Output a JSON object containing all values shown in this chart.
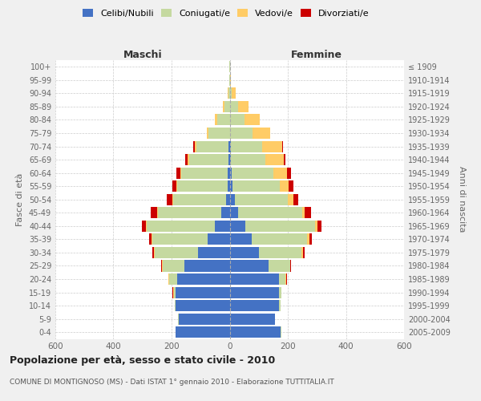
{
  "age_groups": [
    "0-4",
    "5-9",
    "10-14",
    "15-19",
    "20-24",
    "25-29",
    "30-34",
    "35-39",
    "40-44",
    "45-49",
    "50-54",
    "55-59",
    "60-64",
    "65-69",
    "70-74",
    "75-79",
    "80-84",
    "85-89",
    "90-94",
    "95-99",
    "100+"
  ],
  "birth_years": [
    "2005-2009",
    "2000-2004",
    "1995-1999",
    "1990-1994",
    "1985-1989",
    "1980-1984",
    "1975-1979",
    "1970-1974",
    "1965-1969",
    "1960-1964",
    "1955-1959",
    "1950-1954",
    "1945-1949",
    "1940-1944",
    "1935-1939",
    "1930-1934",
    "1925-1929",
    "1920-1924",
    "1915-1919",
    "1910-1914",
    "≤ 1909"
  ],
  "male": {
    "celibi": [
      185,
      175,
      185,
      185,
      180,
      155,
      110,
      75,
      50,
      28,
      12,
      8,
      8,
      5,
      5,
      0,
      0,
      0,
      0,
      0,
      0
    ],
    "coniugati": [
      2,
      2,
      4,
      8,
      28,
      75,
      148,
      190,
      235,
      220,
      183,
      172,
      158,
      135,
      110,
      72,
      42,
      18,
      5,
      2,
      1
    ],
    "vedovi": [
      0,
      0,
      0,
      2,
      2,
      2,
      2,
      3,
      3,
      3,
      3,
      3,
      5,
      5,
      5,
      8,
      10,
      5,
      2,
      0,
      0
    ],
    "divorziati": [
      0,
      0,
      0,
      2,
      2,
      3,
      5,
      8,
      14,
      22,
      18,
      14,
      12,
      8,
      5,
      0,
      0,
      0,
      0,
      0,
      0
    ]
  },
  "female": {
    "nubili": [
      175,
      155,
      170,
      170,
      170,
      135,
      100,
      75,
      55,
      28,
      18,
      10,
      8,
      5,
      4,
      0,
      0,
      0,
      0,
      0,
      0
    ],
    "coniugate": [
      2,
      2,
      4,
      7,
      22,
      72,
      148,
      192,
      238,
      222,
      182,
      162,
      142,
      118,
      108,
      78,
      52,
      28,
      7,
      2,
      0
    ],
    "vedove": [
      0,
      0,
      0,
      0,
      2,
      2,
      4,
      7,
      9,
      9,
      18,
      32,
      48,
      62,
      68,
      62,
      52,
      38,
      14,
      2,
      0
    ],
    "divorziate": [
      0,
      0,
      0,
      0,
      2,
      2,
      6,
      10,
      14,
      22,
      18,
      14,
      12,
      8,
      4,
      0,
      0,
      0,
      0,
      0,
      0
    ]
  },
  "colors": {
    "celibi_nubili": "#4472C4",
    "coniugati": "#C5D9A0",
    "vedovi": "#FFCC66",
    "divorziati": "#CC0000"
  },
  "title": "Popolazione per età, sesso e stato civile - 2010",
  "subtitle": "COMUNE DI MONTIGNOSO (MS) - Dati ISTAT 1° gennaio 2010 - Elaborazione TUTTITALIA.IT",
  "xlabel_left": "Maschi",
  "xlabel_right": "Femmine",
  "ylabel_left": "Fasce di età",
  "ylabel_right": "Anni di nascita",
  "xlim": 600,
  "bg_color": "#f0f0f0",
  "plot_bg": "#ffffff"
}
